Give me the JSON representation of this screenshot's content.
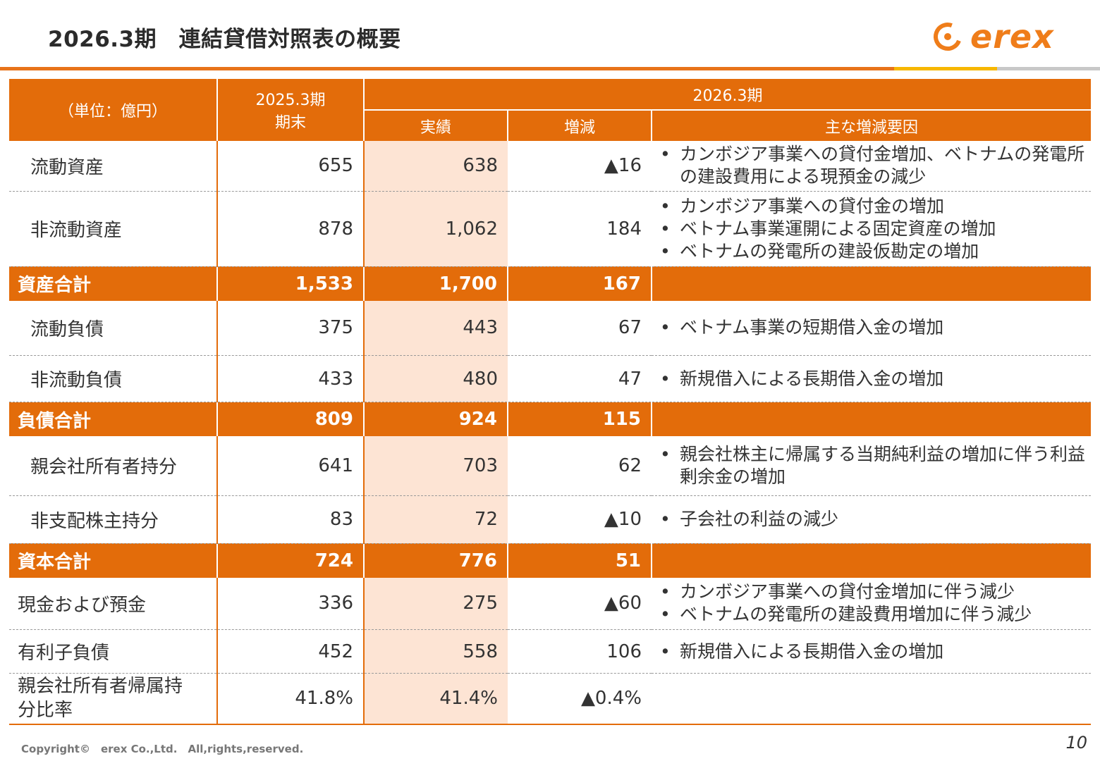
{
  "header": {
    "title": "2026.3期　連結貸借対照表の概要",
    "logo_text": "erex"
  },
  "colors": {
    "accent": "#e36c0a",
    "highlight": "#fde4d4",
    "band_yellow": "#f7b700",
    "band_gray": "#c8c8c8"
  },
  "table": {
    "unit_label": "（単位：億円）",
    "prev_period": "2025.3期",
    "prev_sub": "期末",
    "curr_period": "2026.3期",
    "col_actual": "実績",
    "col_change": "増減",
    "col_reasons": "主な増減要因",
    "rows": [
      {
        "label": "流動資産",
        "prev": "655",
        "actual": "638",
        "change": "▲16",
        "reasons": [
          "カンボジア事業への貸付金増加、ベトナムの発電所の建設費用による現預金の減少"
        ]
      },
      {
        "label": "非流動資産",
        "prev": "878",
        "actual": "1,062",
        "change": "184",
        "reasons": [
          "カンボジア事業への貸付金の増加",
          "ベトナム事業運開による固定資産の増加",
          "ベトナムの発電所の建設仮勘定の増加"
        ]
      },
      {
        "label": "資産合計",
        "prev": "1,533",
        "actual": "1,700",
        "change": "167",
        "reasons": []
      },
      {
        "label": "流動負債",
        "prev": "375",
        "actual": "443",
        "change": "67",
        "reasons": [
          "ベトナム事業の短期借入金の増加"
        ]
      },
      {
        "label": "非流動負債",
        "prev": "433",
        "actual": "480",
        "change": "47",
        "reasons": [
          "新規借入による長期借入金の増加"
        ]
      },
      {
        "label": "負債合計",
        "prev": "809",
        "actual": "924",
        "change": "115",
        "reasons": []
      },
      {
        "label": "親会社所有者持分",
        "prev": "641",
        "actual": "703",
        "change": "62",
        "reasons": [
          "親会社株主に帰属する当期純利益の増加に伴う利益剰余金の増加"
        ]
      },
      {
        "label": "非支配株主持分",
        "prev": "83",
        "actual": "72",
        "change": "▲10",
        "reasons": [
          "子会社の利益の減少"
        ]
      },
      {
        "label": "資本合計",
        "prev": "724",
        "actual": "776",
        "change": "51",
        "reasons": []
      },
      {
        "label": "現金および預金",
        "prev": "336",
        "actual": "275",
        "change": "▲60",
        "reasons": [
          "カンボジア事業への貸付金増加に伴う減少",
          "ベトナムの発電所の建設費用増加に伴う減少"
        ]
      },
      {
        "label": "有利子負債",
        "prev": "452",
        "actual": "558",
        "change": "106",
        "reasons": [
          "新規借入による長期借入金の増加"
        ]
      },
      {
        "label": "親会社所有者帰属持分比率",
        "prev": "41.8%",
        "actual": "41.4%",
        "change": "▲0.4%",
        "reasons": []
      }
    ]
  },
  "footer": {
    "copyright": "Copyright©　erex Co.,Ltd.　All,rights,reserved.",
    "page_number": "10"
  }
}
